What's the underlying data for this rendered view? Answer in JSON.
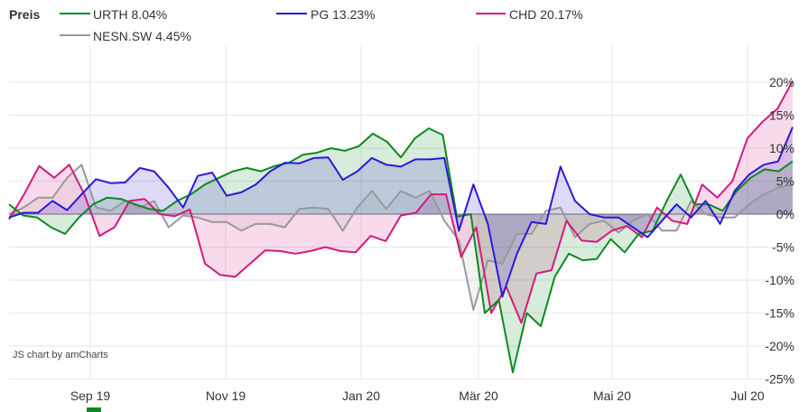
{
  "legend_title": "Preis",
  "credit": "JS chart by amCharts",
  "chart_data": {
    "type": "line",
    "title": "",
    "xlabel": "",
    "ylabel": "",
    "ylim": [
      -26,
      22
    ],
    "y_ticks": [
      -25,
      -20,
      -15,
      -10,
      -5,
      0,
      5,
      10,
      15,
      20
    ],
    "y_tick_labels": [
      "-25%",
      "-20%",
      "-15%",
      "-10%",
      "-5%",
      "0%",
      "5%",
      "10%",
      "15%",
      "20%"
    ],
    "x_ticks": [
      "Sep 19",
      "Nov 19",
      "Jan 20",
      "Mär 20",
      "Mai 20",
      "Jul 20"
    ],
    "grid": true,
    "legend_position": "top-left",
    "x_count": 76,
    "series": [
      {
        "name": "URTH",
        "legend": "URTH 8.04%",
        "color": "#0b8a1f",
        "values": [
          1.5,
          -0.2,
          -0.5,
          -2.0,
          -3.0,
          -0.5,
          1.5,
          2.5,
          2.3,
          1.5,
          0.8,
          0.5,
          2.0,
          3.0,
          4.5,
          5.5,
          6.5,
          7.0,
          6.5,
          7.3,
          7.8,
          9.0,
          9.3,
          10.0,
          9.6,
          10.3,
          12.2,
          11.0,
          8.6,
          11.5,
          13.0,
          12.0,
          -0.4,
          0.0,
          -15.0,
          -13.0,
          -24.0,
          -15.0,
          -17.0,
          -9.5,
          -6.0,
          -7.0,
          -6.8,
          -3.8,
          -5.8,
          -3.0,
          -2.5,
          2.0,
          6.0,
          1.5,
          1.5,
          0.5,
          3.5,
          5.5,
          6.8,
          6.5,
          8.0
        ]
      },
      {
        "name": "PG",
        "legend": "PG 13.23%",
        "color": "#2b1ad6",
        "values": [
          -0.5,
          0.2,
          0.2,
          2.0,
          0.6,
          3.0,
          5.3,
          4.7,
          4.8,
          7.0,
          6.5,
          4.0,
          1.0,
          5.8,
          6.3,
          2.8,
          3.3,
          4.5,
          6.5,
          7.8,
          7.7,
          8.5,
          8.6,
          5.2,
          6.5,
          8.5,
          7.5,
          7.2,
          8.3,
          8.3,
          8.5,
          -2.5,
          4.5,
          -1.5,
          -12.5,
          -6.0,
          -1.2,
          -1.5,
          7.2,
          2.0,
          0.0,
          -0.5,
          -0.5,
          -2.0,
          -3.5,
          -1.0,
          1.5,
          -0.5,
          2.0,
          -1.5,
          3.5,
          6.0,
          7.5,
          8.0,
          13.2
        ]
      },
      {
        "name": "CHD",
        "legend": "CHD 20.17%",
        "color": "#d11b7f",
        "values": [
          -0.8,
          3.0,
          7.3,
          5.5,
          7.5,
          3.0,
          -3.3,
          -2.0,
          2.0,
          2.3,
          0.0,
          -0.3,
          0.7,
          -7.5,
          -9.2,
          -9.5,
          -7.5,
          -5.5,
          -5.6,
          -6.0,
          -5.6,
          -5.0,
          -5.6,
          -5.8,
          -3.3,
          -4.1,
          -0.2,
          0.2,
          3.0,
          3.0,
          -6.5,
          -2.0,
          -15.0,
          -11.0,
          -16.5,
          -9.0,
          -8.5,
          -1.0,
          -4.0,
          -4.2,
          -2.5,
          -1.8,
          -3.5,
          1.0,
          -1.0,
          -1.5,
          4.5,
          2.5,
          5.0,
          11.5,
          14.0,
          16.0,
          20.2
        ]
      },
      {
        "name": "NESN.SW",
        "legend": "NESN.SW 4.45%",
        "color": "#999999",
        "values": [
          0.0,
          1.0,
          2.5,
          2.5,
          5.5,
          7.5,
          1.0,
          0.5,
          2.0,
          1.0,
          2.0,
          -2.0,
          -0.2,
          -0.5,
          -1.2,
          -1.2,
          -2.5,
          -1.5,
          -1.5,
          -2.0,
          0.8,
          1.0,
          0.8,
          -2.5,
          1.0,
          3.5,
          0.8,
          3.5,
          2.5,
          3.5,
          -1.0,
          -4.0,
          -14.5,
          -7.0,
          -7.5,
          -3.0,
          -3.0,
          0.5,
          1.0,
          -3.5,
          -1.5,
          -1.0,
          -2.8,
          -1.0,
          0.0,
          -2.5,
          -2.5,
          2.0,
          0.0,
          -0.5,
          -0.5,
          1.5,
          3.0,
          4.0,
          4.45
        ]
      }
    ]
  }
}
